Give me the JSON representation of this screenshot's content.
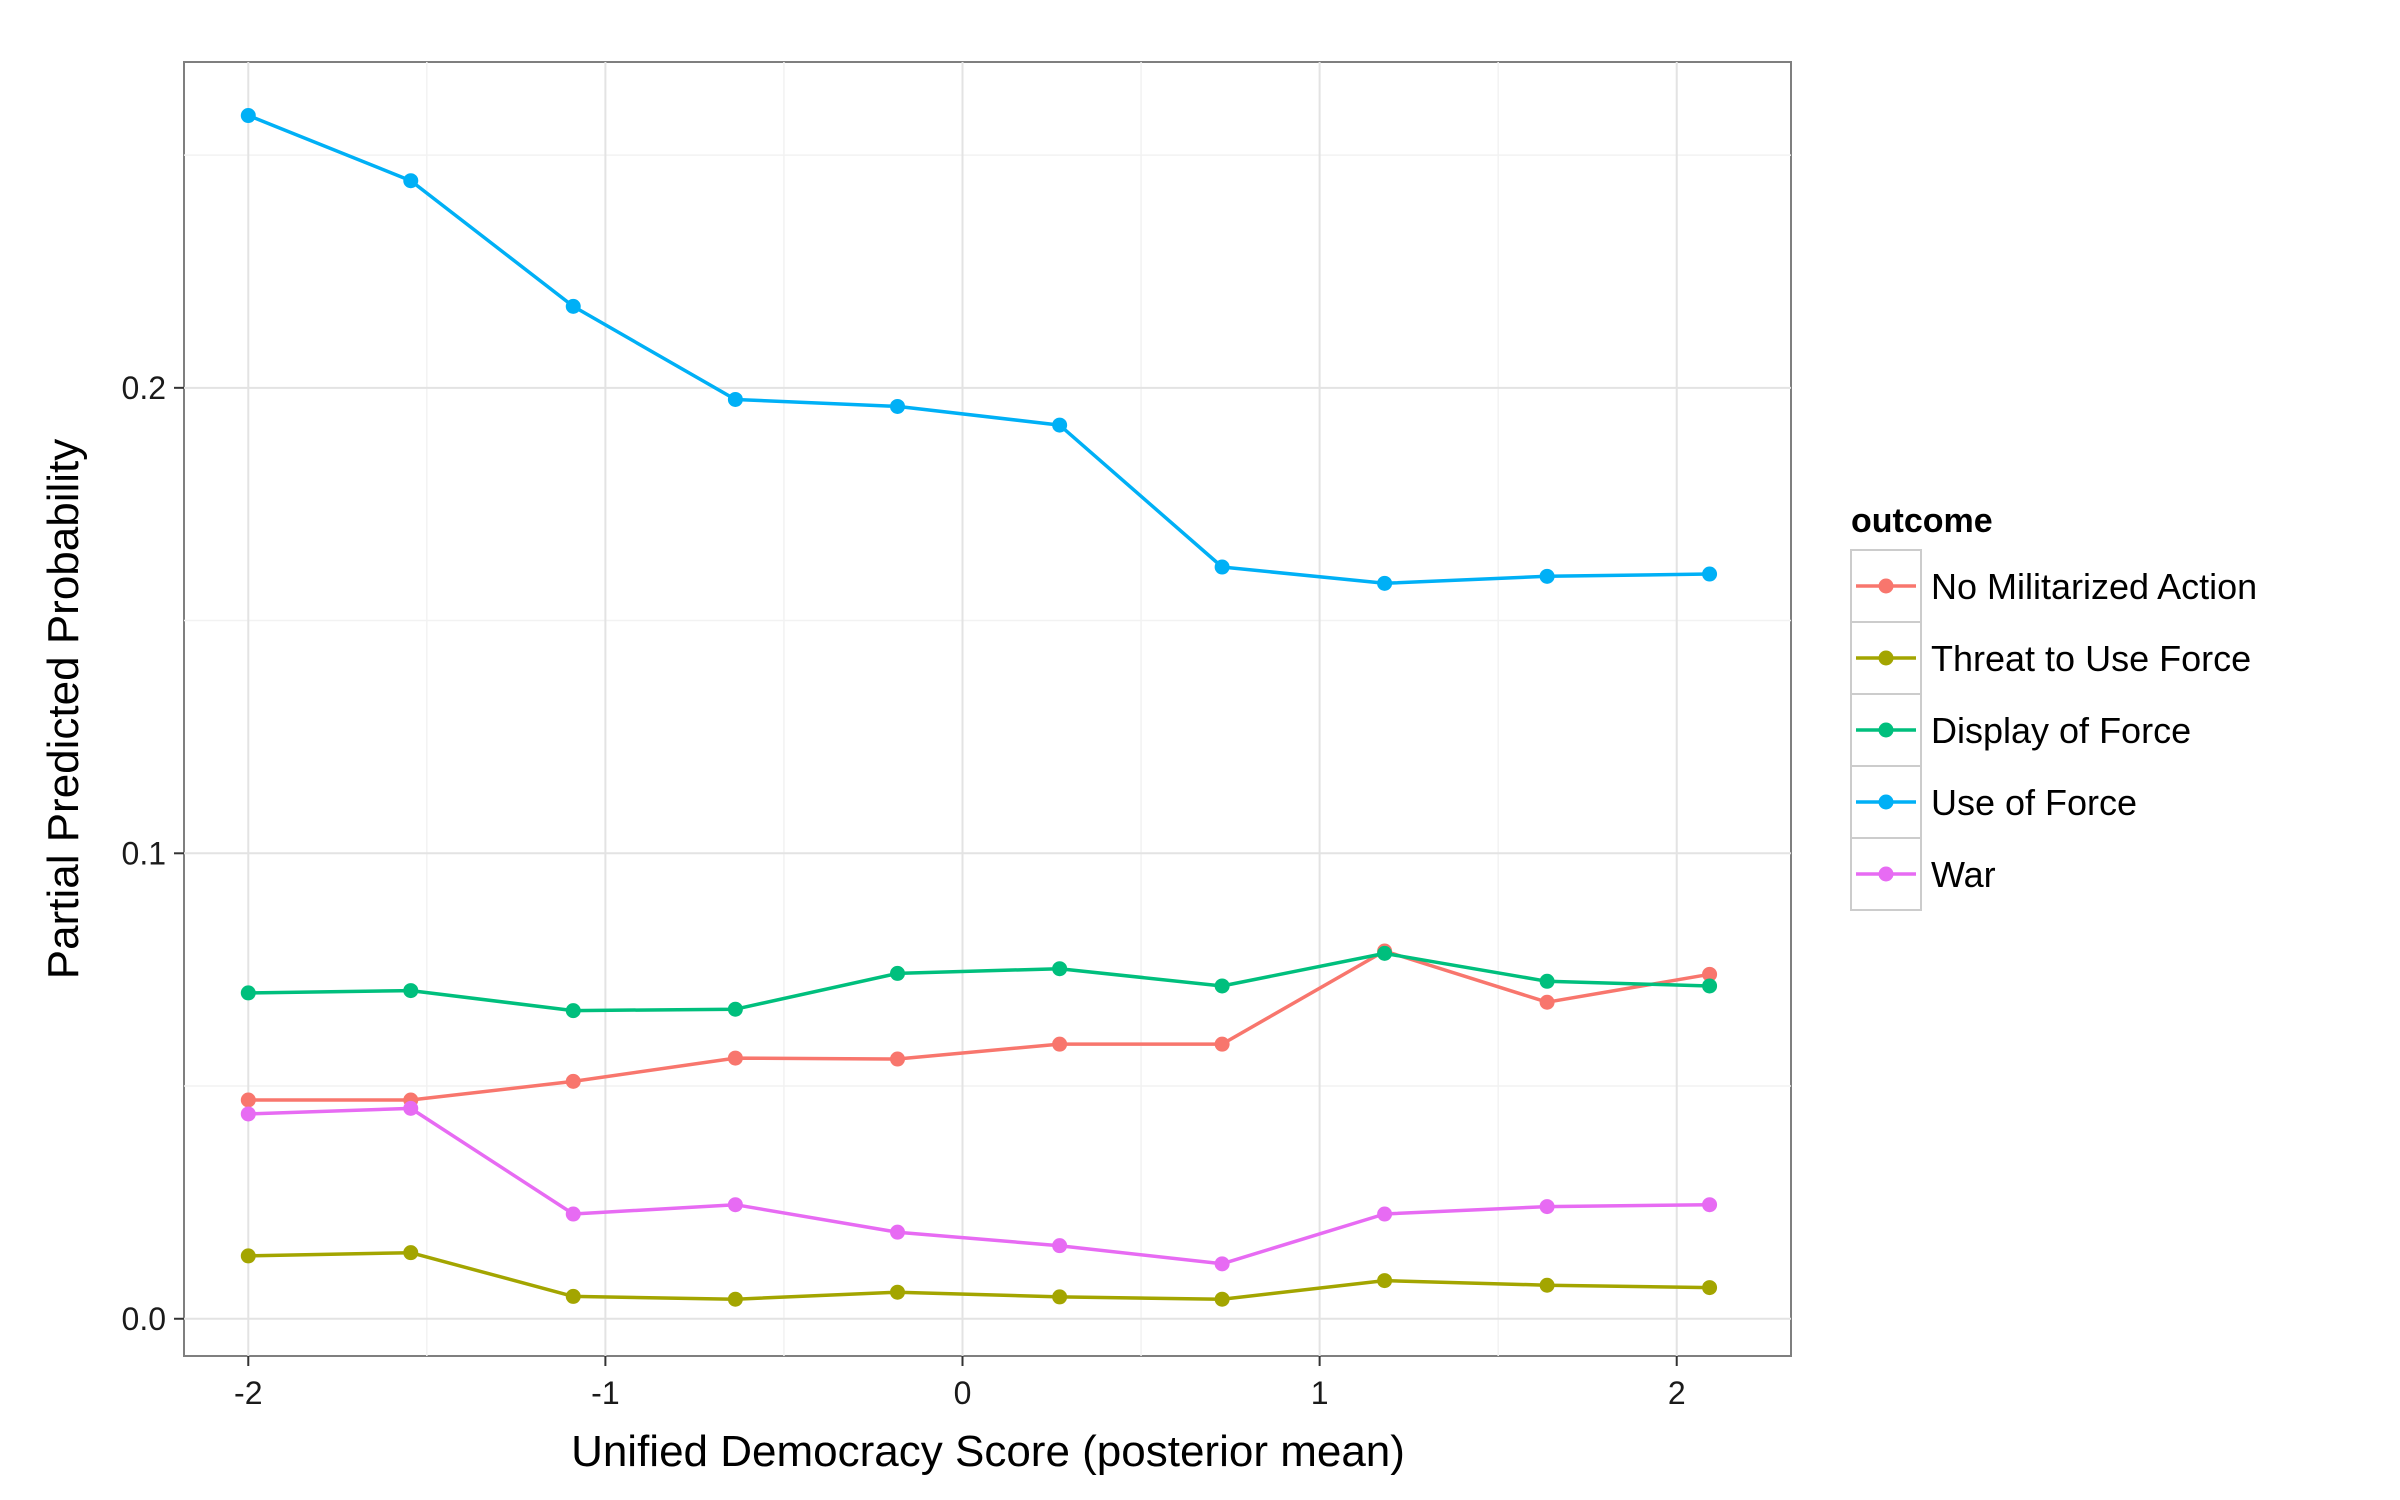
{
  "chart_data": {
    "type": "line",
    "title": "",
    "xlabel": "Unified Democracy Score (posterior mean)",
    "ylabel": "Partial Predicted Probability",
    "xlim": [
      -2.18,
      2.32
    ],
    "ylim": [
      -0.008,
      0.27
    ],
    "x_ticks": [
      -2,
      -1,
      0,
      1,
      2
    ],
    "x_tick_labels": [
      "-2",
      "-1",
      "0",
      "1",
      "2"
    ],
    "y_ticks": [
      0.0,
      0.1,
      0.2
    ],
    "y_tick_labels": [
      "0.0",
      "0.1",
      "0.2"
    ],
    "grid": true,
    "legend": {
      "title": "outcome",
      "placement": "right"
    },
    "x": [
      -2.0,
      -1.545,
      -1.09,
      -0.636,
      -0.182,
      0.272,
      0.727,
      1.182,
      1.637,
      2.092
    ],
    "series": [
      {
        "name": "No Militarized Action",
        "color": "#F8766D",
        "values": [
          0.047,
          0.047,
          0.051,
          0.056,
          0.0558,
          0.059,
          0.059,
          0.079,
          0.068,
          0.074
        ]
      },
      {
        "name": "Threat to Use Force",
        "color": "#A3A500",
        "values": [
          0.0135,
          0.0142,
          0.0048,
          0.0042,
          0.0057,
          0.0047,
          0.0042,
          0.0082,
          0.0072,
          0.0067
        ]
      },
      {
        "name": "Display of Force",
        "color": "#00BF7D",
        "values": [
          0.07,
          0.0705,
          0.0662,
          0.0665,
          0.0742,
          0.0752,
          0.0715,
          0.0785,
          0.0725,
          0.0715
        ]
      },
      {
        "name": "Use of Force",
        "color": "#00B0F6",
        "values": [
          0.2585,
          0.2445,
          0.2175,
          0.1975,
          0.196,
          0.192,
          0.1615,
          0.158,
          0.1595,
          0.16
        ]
      },
      {
        "name": "War",
        "color": "#E76BF3",
        "values": [
          0.044,
          0.0452,
          0.0225,
          0.0245,
          0.0186,
          0.0157,
          0.0118,
          0.0225,
          0.0241,
          0.0245
        ]
      }
    ]
  }
}
